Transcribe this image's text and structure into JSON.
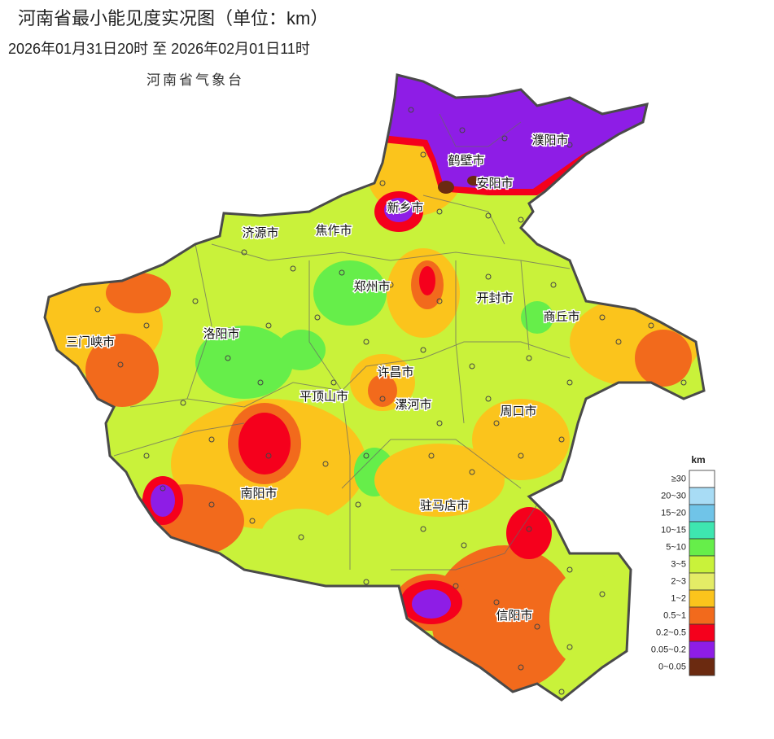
{
  "header": {
    "title": "河南省最小能见度实况图（单位：km）",
    "time_range": "2026年01月31日20时  至  2026年02月01日11时",
    "agency": "河南省气象台"
  },
  "cities": [
    "濮阳市",
    "鹤壁市",
    "安阳市",
    "新乡市",
    "济源市",
    "焦作市",
    "郑州市",
    "开封市",
    "商丘市",
    "三门峡市",
    "洛阳市",
    "许昌市",
    "平顶山市",
    "漯河市",
    "周口市",
    "南阳市",
    "驻马店市",
    "信阳市"
  ],
  "legend": {
    "unit": "km",
    "items": [
      {
        "label": "≥30",
        "color": "#ffffff"
      },
      {
        "label": "20~30",
        "color": "#a8dcf5"
      },
      {
        "label": "15~20",
        "color": "#70c4e8"
      },
      {
        "label": "10~15",
        "color": "#3ee6b0"
      },
      {
        "label": "5~10",
        "color": "#66ee4a"
      },
      {
        "label": "3~5",
        "color": "#c9f23a"
      },
      {
        "label": "2~3",
        "color": "#e4ec66"
      },
      {
        "label": "1~2",
        "color": "#fbc41c"
      },
      {
        "label": "0.5~1",
        "color": "#f26a1c"
      },
      {
        "label": "0.2~0.5",
        "color": "#f5001c"
      },
      {
        "label": "0.05~0.2",
        "color": "#8e1de6"
      },
      {
        "label": "0~0.05",
        "color": "#6b2a10"
      }
    ]
  }
}
